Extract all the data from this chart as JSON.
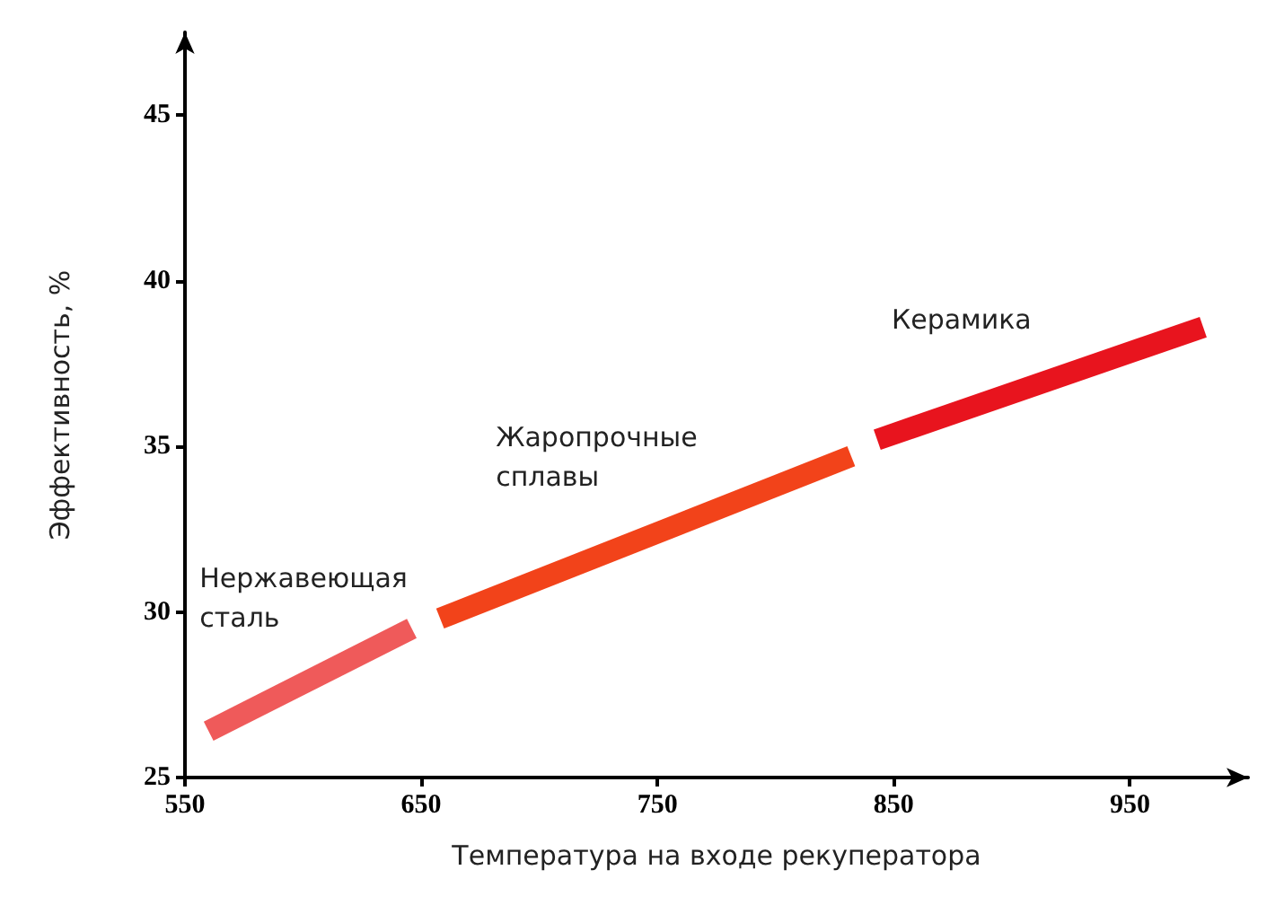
{
  "chart_data": {
    "type": "line",
    "xlabel": "Температура на входе рекуператора",
    "ylabel": "Эффективность, %",
    "xlim": [
      550,
      1000
    ],
    "ylim": [
      25,
      47.5
    ],
    "xticks": [
      550,
      650,
      750,
      850,
      950
    ],
    "yticks": [
      25,
      30,
      35,
      40,
      45
    ],
    "grid": false,
    "legend": false,
    "marker": "none",
    "line_style": "solid",
    "series": [
      {
        "name": "Нержавеющая\nсталь",
        "color": "#ef5a5a",
        "x": [
          560,
          646
        ],
        "values": [
          26.4,
          29.5
        ]
      },
      {
        "name": "Жаропрочные\nсплавы",
        "color": "#f2431a",
        "x": [
          658,
          832
        ],
        "values": [
          29.8,
          34.7
        ]
      },
      {
        "name": "Керамика",
        "color": "#e8141e",
        "x": [
          843,
          981
        ],
        "values": [
          35.2,
          38.6
        ]
      }
    ]
  }
}
